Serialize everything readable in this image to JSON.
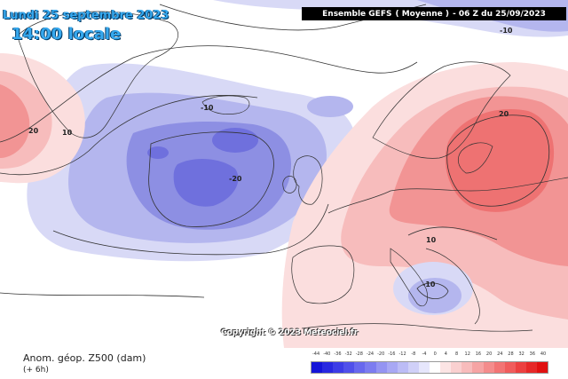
{
  "header": {
    "date": "Lundi 25 septembre 2023",
    "time": "14:00 locale",
    "run_label": "Ensemble GEFS",
    "run_mode": "( Moyenne )",
    "run_time": "- 06 Z du 25/09/2023"
  },
  "footer": {
    "parameter": "Anom. géop. Z500 (dam)",
    "offset": "(+ 6h)",
    "copyright": "Copyright © 2023 Meteociel.fr"
  },
  "contour_labels": [
    "-10",
    "20",
    "10",
    "-10",
    "-20",
    "20",
    "10",
    "-10"
  ],
  "scale": {
    "labels": [
      "-44",
      "-40",
      "-36",
      "-32",
      "-28",
      "-24",
      "-20",
      "-16",
      "-12",
      "-8",
      "-4",
      "0",
      "4",
      "8",
      "12",
      "16",
      "20",
      "24",
      "28",
      "32",
      "36",
      "40"
    ],
    "colors": [
      "#1414d8",
      "#2828e0",
      "#3c3ce6",
      "#5050ea",
      "#6868ee",
      "#7c7cf0",
      "#9494f2",
      "#a8a8f4",
      "#bcbcf6",
      "#d0d0f8",
      "#e6e6fc",
      "#ffffff",
      "#fce4e4",
      "#fad0d0",
      "#f8bcbc",
      "#f6a4a4",
      "#f48c8c",
      "#f27474",
      "#f05c5c",
      "#ec4040",
      "#e62828",
      "#e01010"
    ]
  },
  "palette": {
    "land_outline": "#333333",
    "contour": "#333333",
    "neg1": "#d8d9f6",
    "neg2": "#b4b6ee",
    "neg3": "#8d8fe3",
    "neg4": "#6f70dd",
    "pos1": "#fbdede",
    "pos2": "#f7bcbc",
    "pos3": "#f29494",
    "pos4": "#ee7272"
  }
}
